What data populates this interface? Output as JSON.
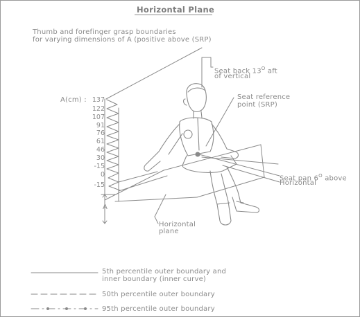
{
  "title": "Horizontal Plane",
  "subtitle": {
    "line1": "Thumb and forefinger grasp boundaries",
    "line2": "for varying dimensions of A (positive above (SRP)"
  },
  "labels": {
    "seat_back_1": "Seat back 13",
    "seat_back_deg": "O",
    "seat_back_aft": "aft",
    "seat_back_2": "of vertical",
    "srp_1": "Seat reference",
    "srp_2": "point (SRP)",
    "seat_pan_1": "Seat pan 6",
    "seat_pan_deg": "O",
    "seat_pan_above": "above",
    "seat_pan_2": "Horizontal",
    "horiz_plane_1": "Horizontal",
    "horiz_plane_2": "plane",
    "dim_a": "A"
  },
  "axis": {
    "label": "A(cm) :",
    "ticks": [
      "137",
      "122",
      "107",
      "91",
      "76",
      "61",
      "46",
      "30",
      "-15",
      "0",
      "-15"
    ]
  },
  "legend": [
    {
      "line1": "5th percentile outer boundary and",
      "line2": "inner boundary (inner curve)",
      "style": "solid"
    },
    {
      "line1": "50th percentile outer boundary",
      "line2": "",
      "style": "dashed"
    },
    {
      "line1": "95th percentile outer boundary",
      "line2": "",
      "style": "dash-dot"
    }
  ],
  "colors": {
    "ink": "#8a8a8a",
    "frame": "#9a9a9a",
    "background": "#ffffff"
  }
}
